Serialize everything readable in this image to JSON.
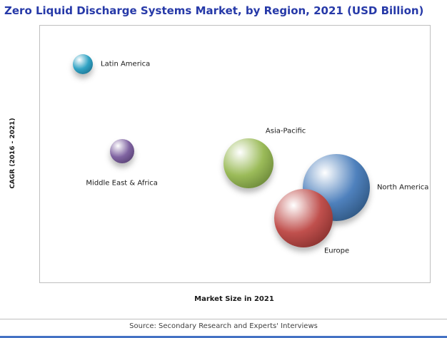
{
  "header": {
    "title": "Zero Liquid Discharge Systems Market, by Region, 2021 (USD Billion)"
  },
  "axes": {
    "y_label": "CAGR (2016 - 2021)",
    "x_label": "Market Size in 2021"
  },
  "footer": {
    "source": "Source: Secondary Research and Experts' Interviews"
  },
  "colors": {
    "title_blue": "#2639A8",
    "accent_bar_blue": "#4472C4",
    "plot_border_gray": "#BFBFBF"
  },
  "chart_data": {
    "type": "scatter",
    "subtype": "bubble",
    "title": "Zero Liquid Discharge Systems Market, by Region, 2021 (USD Billion)",
    "xlabel": "Market Size in 2021",
    "ylabel": "CAGR (2016 - 2021)",
    "axis_ticks_visible": false,
    "grid": false,
    "x_range": [
      0,
      1
    ],
    "y_range": [
      0,
      1
    ],
    "legend_position": "none",
    "note": "Axis tick values are not shown in the figure; x_rel and y_rel are relative positions (0-1, y bottom-up). r is bubble radius in px, proportional to market size.",
    "series": [
      {
        "name": "Latin America",
        "x_rel": 0.11,
        "y_rel": 0.85,
        "r": 14,
        "color": "#31A3C4",
        "color_dark": "#14607E",
        "label_dx": 25,
        "label_dy": 0,
        "label_anchor": "left"
      },
      {
        "name": "Middle East & Africa",
        "x_rel": 0.21,
        "y_rel": 0.51,
        "r": 17,
        "color": "#8064A2",
        "color_dark": "#46315F",
        "label_dx": 0,
        "label_dy": 45,
        "label_anchor": "center"
      },
      {
        "name": "Asia-Pacific",
        "x_rel": 0.535,
        "y_rel": 0.465,
        "r": 35,
        "color": "#9BBB59",
        "color_dark": "#55702A",
        "label_dx": 52,
        "label_dy": -45,
        "label_anchor": "center"
      },
      {
        "name": "North America",
        "x_rel": 0.76,
        "y_rel": 0.37,
        "r": 47,
        "color": "#4F81BD",
        "color_dark": "#1F4163",
        "label_dx": 57,
        "label_dy": 0,
        "label_anchor": "left"
      },
      {
        "name": "Europe",
        "x_rel": 0.675,
        "y_rel": 0.25,
        "r": 41,
        "color": "#C0504D",
        "color_dark": "#6E2220",
        "label_dx": 47,
        "label_dy": 46,
        "label_anchor": "center"
      }
    ]
  }
}
